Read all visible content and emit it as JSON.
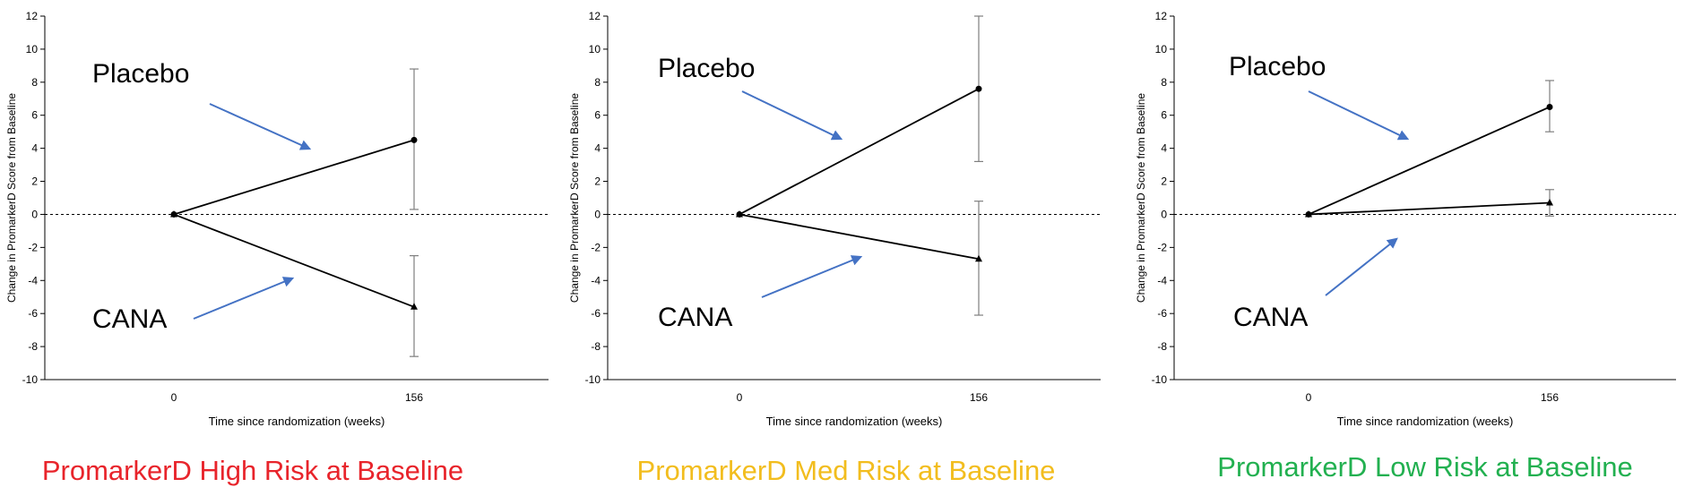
{
  "colors": {
    "axis": "#000000",
    "gridline": "#000000",
    "errorbar": "#7f7f7f",
    "arrow": "#4472c4",
    "high": "#e8242b",
    "med": "#f2bd1e",
    "low": "#22b050"
  },
  "chart_data": [
    {
      "type": "line",
      "title": "PromarkerD High Risk at Baseline",
      "title_color": "#e8242b",
      "xlabel": "Time since randomization (weeks)",
      "ylabel": "Change in PromarkerD Score from Baseline",
      "ylim": [
        -10,
        12
      ],
      "yticks": [
        "12",
        "10",
        "8",
        "6",
        "4",
        "2",
        "0",
        "-2",
        "-4",
        "-6",
        "-8",
        "-10"
      ],
      "categories": [
        "0",
        "156"
      ],
      "reference_line": 0,
      "series": [
        {
          "name": "Placebo",
          "marker": "circle",
          "values": [
            0,
            4.5
          ],
          "error_low": [
            0,
            0.3
          ],
          "error_high": [
            0,
            8.8
          ]
        },
        {
          "name": "CANA",
          "marker": "triangle",
          "values": [
            0,
            -5.6
          ],
          "error_low": [
            0,
            -8.6
          ],
          "error_high": [
            0,
            -2.5
          ]
        }
      ],
      "annotations": [
        "Placebo",
        "CANA"
      ]
    },
    {
      "type": "line",
      "title": "PromarkerD Med Risk at Baseline",
      "title_color": "#f2bd1e",
      "xlabel": "Time since randomization (weeks)",
      "ylabel": "Change in PromarkerD Score from Baseline",
      "ylim": [
        -10,
        12
      ],
      "yticks": [
        "12",
        "10",
        "8",
        "6",
        "4",
        "2",
        "0",
        "-2",
        "-4",
        "-6",
        "-8",
        "-10"
      ],
      "categories": [
        "0",
        "156"
      ],
      "reference_line": 0,
      "series": [
        {
          "name": "Placebo",
          "marker": "circle",
          "values": [
            0,
            7.6
          ],
          "error_low": [
            0,
            3.2
          ],
          "error_high": [
            0,
            12
          ]
        },
        {
          "name": "CANA",
          "marker": "triangle",
          "values": [
            0,
            -2.7
          ],
          "error_low": [
            0,
            -6.1
          ],
          "error_high": [
            0,
            0.8
          ]
        }
      ],
      "annotations": [
        "Placebo",
        "CANA"
      ]
    },
    {
      "type": "line",
      "title": "PromarkerD Low Risk at Baseline",
      "title_color": "#22b050",
      "xlabel": "Time since randomization (weeks)",
      "ylabel": "Change in PromarkerD Score from Baseline",
      "ylim": [
        -10,
        12
      ],
      "yticks": [
        "12",
        "10",
        "8",
        "6",
        "4",
        "2",
        "0",
        "-2",
        "-4",
        "-6",
        "-8",
        "-10"
      ],
      "categories": [
        "0",
        "156"
      ],
      "reference_line": 0,
      "series": [
        {
          "name": "Placebo",
          "marker": "circle",
          "values": [
            0,
            6.5
          ],
          "error_low": [
            0,
            5.0
          ],
          "error_high": [
            0,
            8.1
          ]
        },
        {
          "name": "CANA",
          "marker": "triangle",
          "values": [
            0,
            0.7
          ],
          "error_low": [
            0,
            -0.1
          ],
          "error_high": [
            0,
            1.5
          ]
        }
      ],
      "annotations": [
        "Placebo",
        "CANA"
      ]
    }
  ]
}
